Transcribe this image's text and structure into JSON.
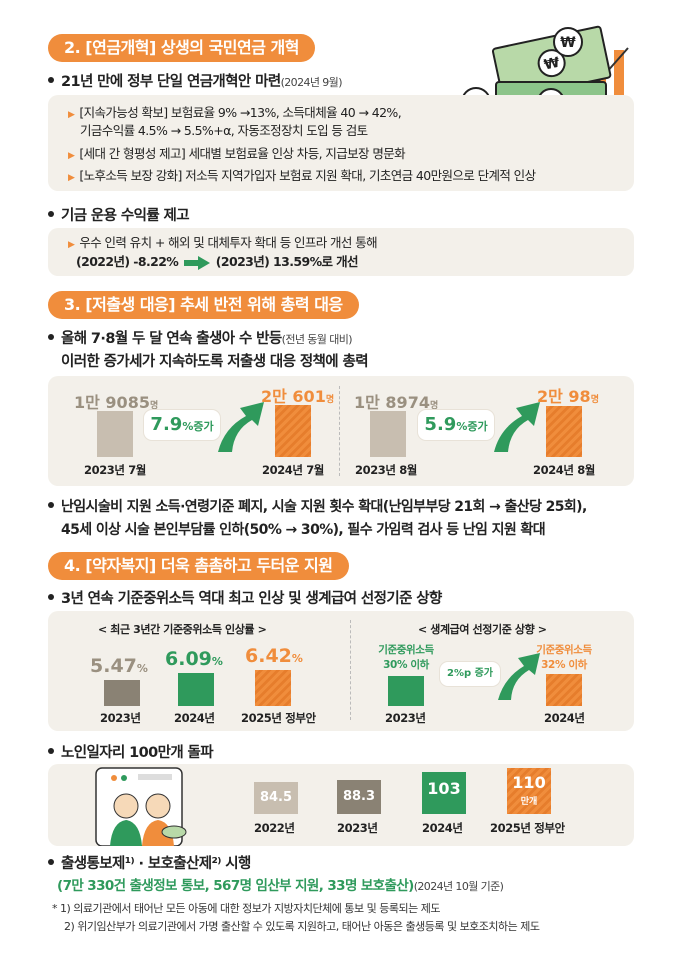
{
  "sec2": {
    "heading": "2. [연금개혁] 상생의 국민연금 개혁",
    "b1": {
      "text": "21년 만에 정부 단일 연금개혁안 마련",
      "note": "(2024년 9월)"
    },
    "subs": [
      "[지속가능성 확보] 보험료율 9% →13%, 소득대체율 40 → 42%,",
      "기금수익률 4.5% → 5.5%+α, 자동조정장치 도입 등 검토",
      "[세대 간 형평성 제고] 세대별 보험료율 인상 차등, 지급보장 명문화",
      "[노후소득 보장 강화] 저소득 지역가입자 보험료 지원 확대, 기초연금 40만원으로 단계적 인상"
    ],
    "b2": {
      "text": "기금 운용 수익률 제고"
    },
    "b2sub1": "우수 인력 유치 + 해외 및 대체투자 확대 등 인프라 개선 통해",
    "b2sub2a": "(2022년) -8.22%",
    "b2sub2b": "(2023년) 13.59%로 개선"
  },
  "sec3": {
    "heading": "3. [저출생 대응] 추세 반전 위해 총력 대응",
    "b1": {
      "text": "올해 7·8월 두 달 연속 출생아 수 반등",
      "note": "(전년 동월 대비)"
    },
    "b1line2": "이러한 증가세가 지속하도록 저출생 대응 정책에 총력",
    "chart_left": {
      "before_num": "1만 9085",
      "before_unit": "명",
      "after_num": "2만 601",
      "after_unit": "명",
      "rate": "7.9",
      "rate_unit": "%증가",
      "x1": "2023년 7월",
      "x2": "2024년 7월"
    },
    "chart_right": {
      "before_num": "1만 8974",
      "before_unit": "명",
      "after_num": "2만 98",
      "after_unit": "명",
      "rate": "5.9",
      "rate_unit": "%증가",
      "x1": "2023년 8월",
      "x2": "2024년 8월"
    },
    "b2line1": "난임시술비 지원 소득·연령기준 폐지, 시술 지원 횟수 확대(난임부부당 21회 → 출산당 25회),",
    "b2line2": "45세 이상 시술 본인부담률 인하(50% → 30%), 필수 가임력 검사 등 난임 지원 확대"
  },
  "sec4": {
    "heading": "4. [약자복지] 더욱 촘촘하고 두터운 지원",
    "b1": {
      "text": "3년 연속 기준중위소득 역대 최고 인상 및 생계급여 선정기준 상향"
    },
    "left_title": "< 최근 3년간 기준중위소득 인상률 >",
    "right_title": "< 생계급여 선정기준 상향 >",
    "rates": [
      {
        "value": "5.47",
        "unit": "%",
        "label": "2023년"
      },
      {
        "value": "6.09",
        "unit": "%",
        "label": "2024년"
      },
      {
        "value": "6.42",
        "unit": "%",
        "label": "2025년 정부안"
      }
    ],
    "criteria": {
      "before_line1": "기준중위소득",
      "before_line2": "30% 이하",
      "before_label": "2023년",
      "after_line1": "기준중위소득",
      "after_line2": "32% 이하",
      "after_label": "2024년",
      "change": "2%p 증가"
    },
    "b2": {
      "text": "노인일자리 100만개 돌파"
    },
    "jobs": [
      {
        "value": "84.5",
        "label": "2022년"
      },
      {
        "value": "88.3",
        "label": "2023년"
      },
      {
        "value": "103",
        "label": "2024년"
      },
      {
        "value": "110",
        "unit": "만개",
        "label": "2025년 정부안"
      }
    ],
    "b3": {
      "text": "출생통보제¹⁾ · 보호출산제²⁾ 시행"
    },
    "b3line2": "(7만 330건 출생정보 통보, 567명 임산부 지원, 33명 보호출산)",
    "b3note": "(2024년 10월 기준)",
    "fn1": "*  1) 의료기관에서 태어난 모든 아동에 대한 정보가 지방자치단체에 통보 및 등록되는 제도",
    "fn2": "2) 위기임산부가 의료기관에서 가명 출산할 수 있도록 지원하고, 태어난 아동은 출생등록 및 보호조치하는 제도"
  },
  "colors": {
    "accent": "#f08d3c",
    "green": "#2f9a5c",
    "beige": "#c8beb0"
  }
}
